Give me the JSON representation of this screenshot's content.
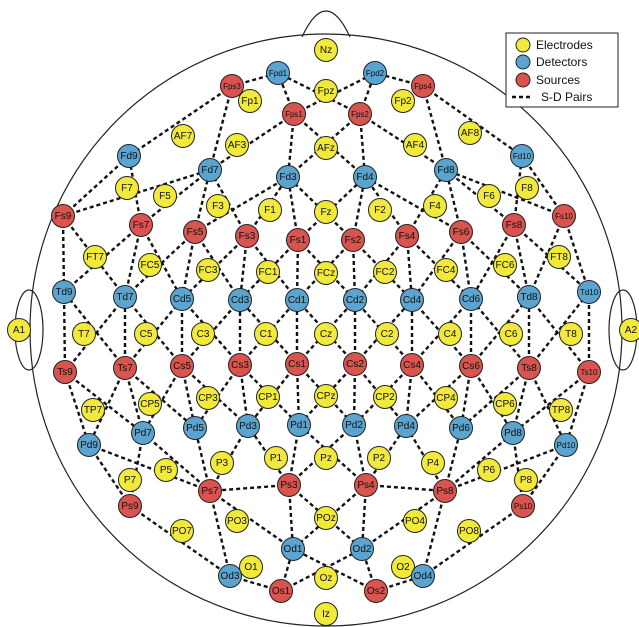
{
  "colors": {
    "electrode": "#f2ea3a",
    "detector": "#5aa4cf",
    "source": "#d9534f",
    "outline": "#222222",
    "pair_line": "#111111"
  },
  "legend": {
    "electrodes": "Electrodes",
    "detectors": "Detectors",
    "sources": "Sources",
    "pairs": "S-D Pairs"
  },
  "nodes": {
    "electrodes": [
      "Nz",
      "Fpz",
      "Fp1",
      "Fp2",
      "AF7",
      "AF3",
      "AFz",
      "AF4",
      "AF8",
      "F7",
      "F5",
      "F3",
      "F1",
      "Fz",
      "F2",
      "F4",
      "F6",
      "F8",
      "FT7",
      "FC5",
      "FC3",
      "FC1",
      "FCz",
      "FC2",
      "FC4",
      "FC6",
      "FT8",
      "A1",
      "T7",
      "C5",
      "C3",
      "C1",
      "Cz",
      "C2",
      "C4",
      "C6",
      "T8",
      "A2",
      "TP7",
      "CP5",
      "CP3",
      "CP1",
      "CPz",
      "CP2",
      "CP4",
      "CP6",
      "TP8",
      "P7",
      "P5",
      "P3",
      "P1",
      "Pz",
      "P2",
      "P4",
      "P6",
      "P8",
      "PO7",
      "PO3",
      "POz",
      "PO4",
      "PO8",
      "O1",
      "Oz",
      "O2",
      "Iz"
    ],
    "detectors": [
      "Fpd1",
      "Fpd2",
      "Fd9",
      "Fd7",
      "Fd3",
      "Fd4",
      "Fd8",
      "Fd10",
      "Td9",
      "Td7",
      "Cd5",
      "Cd3",
      "Cd1",
      "Cd2",
      "Cd4",
      "Cd6",
      "Td8",
      "Td10",
      "Pd9",
      "Pd7",
      "Pd5",
      "Pd3",
      "Pd1",
      "Pd2",
      "Pd4",
      "Pd6",
      "Pd8",
      "Pd10",
      "Od1",
      "Od2",
      "Od3",
      "Od4"
    ],
    "sources": [
      "Fps3",
      "Fps1",
      "Fps2",
      "Fps4",
      "Fs9",
      "Fs7",
      "Fs5",
      "Fs3",
      "Fs1",
      "Fs2",
      "Fs4",
      "Fs6",
      "Fs8",
      "Fs10",
      "Ts9",
      "Ts7",
      "Cs5",
      "Cs3",
      "Cs1",
      "Cs2",
      "Cs4",
      "Cs6",
      "Ts8",
      "Ts10",
      "Ps9",
      "Ps7",
      "Ps3",
      "Ps4",
      "Ps8",
      "Ps10",
      "Os1",
      "Os2"
    ]
  }
}
